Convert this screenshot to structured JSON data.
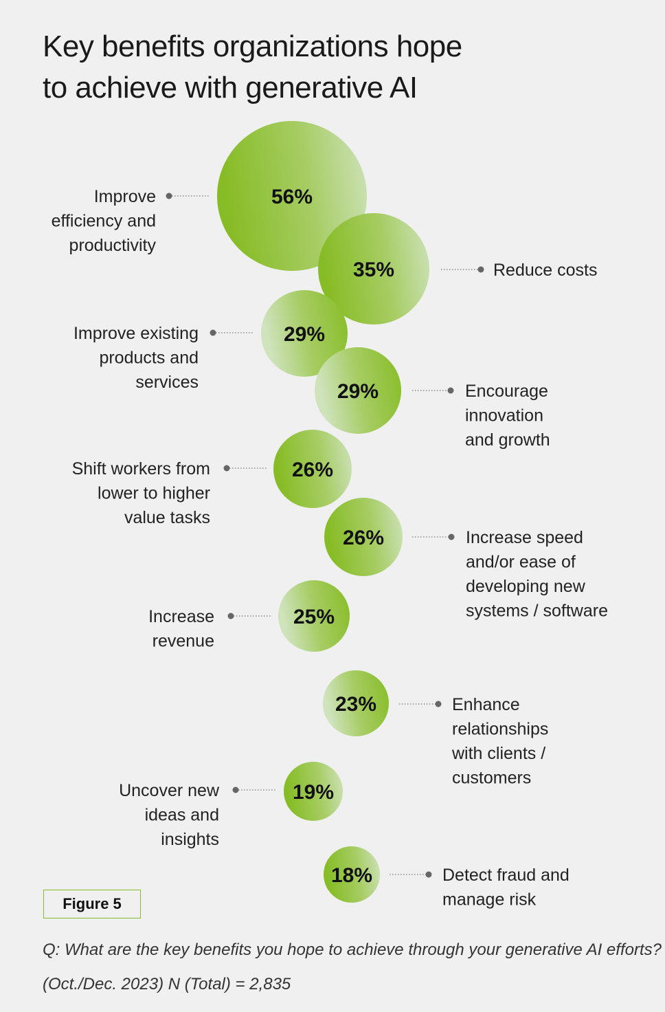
{
  "title_lines": [
    "Key benefits organizations hope",
    "to achieve with generative AI"
  ],
  "figure_label": "Figure 5",
  "question": "Q: What are the key benefits you hope to achieve through your generative AI efforts?",
  "sample": "(Oct./Dec. 2023) N (Total) = 2,835",
  "colors": {
    "bubble_dark": "#86bc25",
    "bubble_light": "#c8e0b0",
    "connector": "#777777",
    "accent": "#86bc25"
  },
  "chart_data": {
    "type": "bubble",
    "unit": "%",
    "series": [
      {
        "category": [
          "Improve",
          "efficiency and",
          "productivity"
        ],
        "value": 56,
        "label": "56%"
      },
      {
        "category": [
          "Reduce costs"
        ],
        "value": 35,
        "label": "35%"
      },
      {
        "category": [
          "Improve existing",
          "products and",
          "services"
        ],
        "value": 29,
        "label": "29%"
      },
      {
        "category": [
          "Encourage",
          "innovation",
          "and growth"
        ],
        "value": 29,
        "label": "29%"
      },
      {
        "category": [
          "Shift workers from",
          "lower to higher",
          "value tasks"
        ],
        "value": 26,
        "label": "26%"
      },
      {
        "category": [
          "Increase speed",
          "and/or ease of",
          "developing new",
          "systems / software"
        ],
        "value": 26,
        "label": "26%"
      },
      {
        "category": [
          "Increase",
          "revenue"
        ],
        "value": 25,
        "label": "25%"
      },
      {
        "category": [
          "Enhance",
          "relationships",
          "with clients /",
          "customers"
        ],
        "value": 23,
        "label": "23%"
      },
      {
        "category": [
          "Uncover new",
          "ideas and",
          "insights"
        ],
        "value": 19,
        "label": "19%"
      },
      {
        "category": [
          "Detect fraud and",
          "manage risk"
        ],
        "value": 18,
        "label": "18%"
      }
    ]
  }
}
